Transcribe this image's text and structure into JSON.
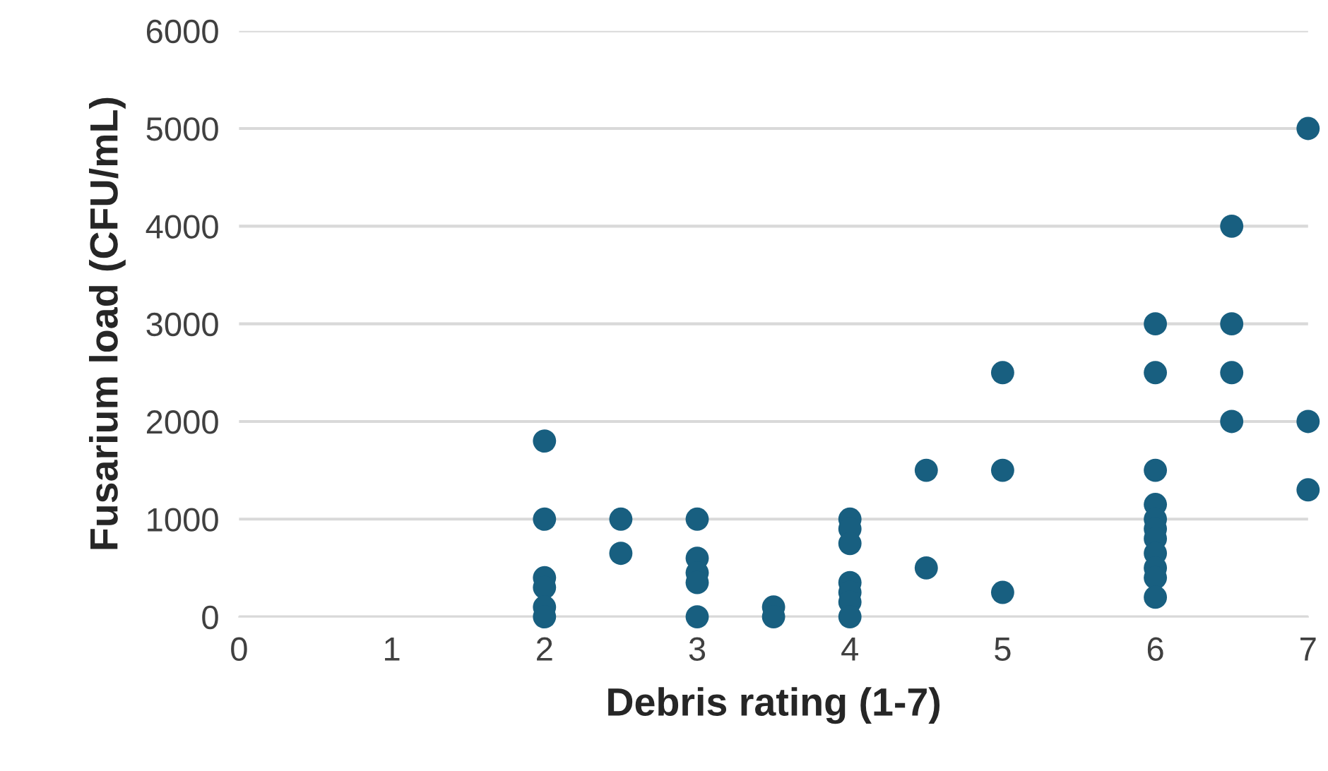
{
  "chart_data": {
    "type": "scatter",
    "xlabel": "Debris rating (1-7)",
    "ylabel": "Fusarium load (CFU/mL)",
    "x": [
      2,
      2,
      2,
      2,
      2,
      2,
      2.5,
      2.5,
      3,
      3,
      3,
      3,
      3,
      3.5,
      3.5,
      4,
      4,
      4,
      4,
      4,
      4,
      4,
      4.5,
      4.5,
      5,
      5,
      5,
      6,
      6,
      6,
      6,
      6,
      6,
      6,
      6,
      6,
      6,
      6,
      6.5,
      6.5,
      6.5,
      6.5,
      7,
      7,
      7
    ],
    "series": [
      {
        "color": "#185f80",
        "values": [
          1800,
          1000,
          400,
          300,
          100,
          0,
          1000,
          650,
          1000,
          600,
          450,
          350,
          0,
          100,
          0,
          1000,
          900,
          750,
          350,
          250,
          150,
          0,
          1500,
          500,
          2500,
          1500,
          250,
          3000,
          2500,
          1500,
          1150,
          1000,
          900,
          800,
          650,
          500,
          400,
          200,
          4000,
          3000,
          2500,
          2000,
          5000,
          2000,
          1300
        ]
      }
    ],
    "xlim": [
      0,
      7
    ],
    "xticks": [
      0,
      1,
      2,
      3,
      4,
      5,
      6,
      7
    ],
    "ylim": [
      0,
      6000
    ],
    "yticks": [
      0,
      1000,
      2000,
      3000,
      4000,
      5000,
      6000
    ],
    "grid": "y",
    "marker": "circle",
    "legend": false
  }
}
